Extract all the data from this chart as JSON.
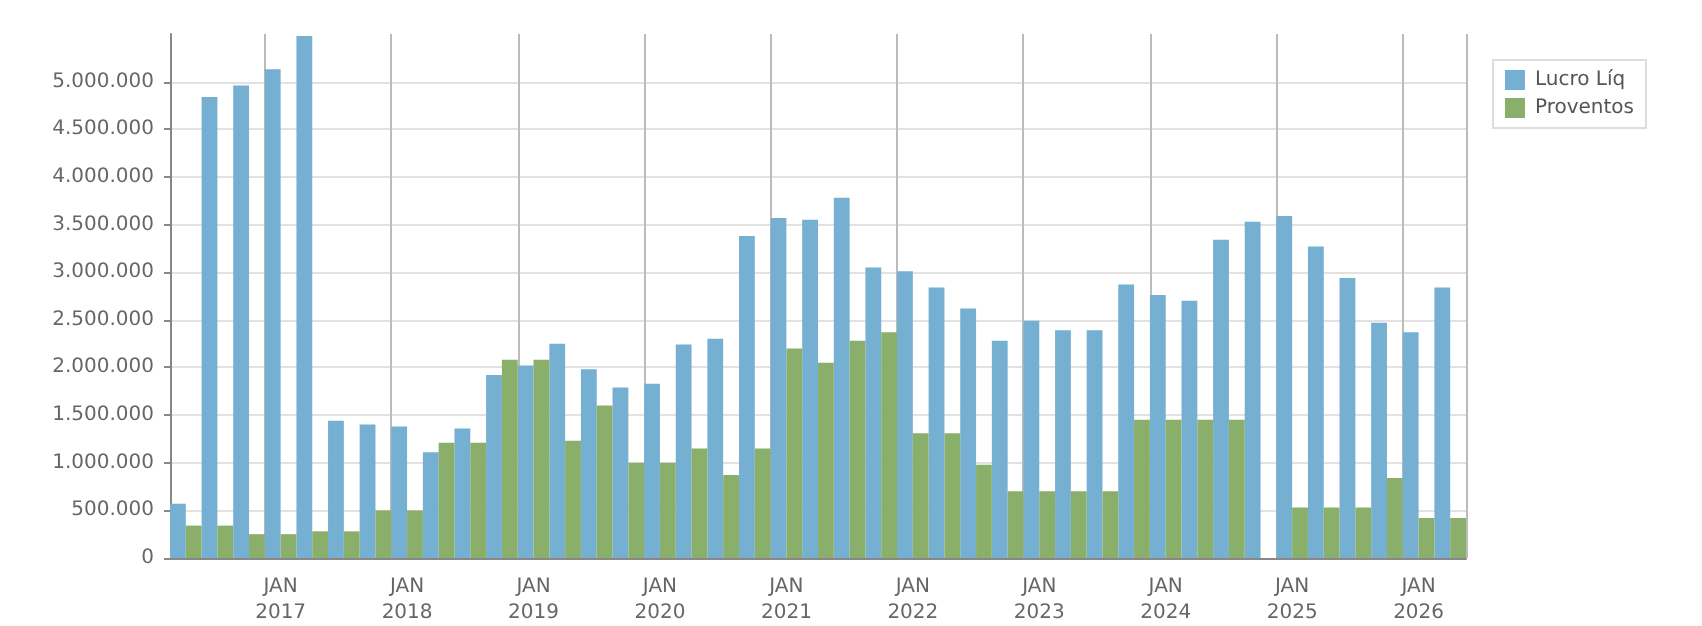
{
  "chart_data": {
    "type": "bar",
    "categories": [
      null,
      null,
      null,
      "JAN\n2017",
      null,
      null,
      null,
      "JAN\n2018",
      null,
      null,
      null,
      "JAN\n2019",
      null,
      null,
      null,
      "JAN\n2020",
      null,
      null,
      null,
      "JAN\n2021",
      null,
      null,
      null,
      "JAN\n2022",
      null,
      null,
      null,
      "JAN\n2023",
      null,
      null,
      null,
      "JAN\n2024",
      null,
      null,
      null,
      "JAN\n2025",
      null,
      null,
      null,
      "JAN\n2026",
      null
    ],
    "series": [
      {
        "name": "Lucro Líq",
        "color": "#75afd1",
        "values": [
          570000,
          4840000,
          4960000,
          5130000,
          5480000,
          1440000,
          1400000,
          1380000,
          1110000,
          1360000,
          1920000,
          2020000,
          2250000,
          1980000,
          1790000,
          1830000,
          2240000,
          2300000,
          3380000,
          3570000,
          3550000,
          3780000,
          3050000,
          3010000,
          2840000,
          2620000,
          2280000,
          2490000,
          2390000,
          2390000,
          2870000,
          2760000,
          2700000,
          3340000,
          3530000,
          3590000,
          3270000,
          2940000,
          2470000,
          2370000,
          2840000
        ]
      },
      {
        "name": "Proventos",
        "color": "#8aaf6a",
        "values": [
          340000,
          340000,
          250000,
          250000,
          280000,
          280000,
          500000,
          500000,
          1210000,
          1210000,
          2080000,
          2080000,
          1230000,
          1600000,
          1000000,
          1000000,
          1150000,
          870000,
          1150000,
          2200000,
          2050000,
          2280000,
          2370000,
          1310000,
          1310000,
          980000,
          700000,
          700000,
          700000,
          700000,
          1450000,
          1450000,
          1450000,
          1450000,
          null,
          530000,
          530000,
          530000,
          840000,
          420000,
          420000
        ]
      }
    ],
    "ylim": [
      0,
      5500000
    ],
    "yticks": [
      0,
      {
        "value": 500000,
        "label": "500.000"
      },
      {
        "value": 1000000,
        "label": "1.000.000"
      },
      {
        "value": 1500000,
        "label": "1.500.000"
      },
      {
        "value": 2000000,
        "label": "2.000.000"
      },
      {
        "value": 2500000,
        "label": "2.500.000"
      },
      {
        "value": 3000000,
        "label": "3.000.000"
      },
      {
        "value": 3500000,
        "label": "3.500.000"
      },
      {
        "value": 4000000,
        "label": "4.000.000"
      },
      {
        "value": 4500000,
        "label": "4.500.000"
      },
      {
        "value": 5000000,
        "label": "5.000.000"
      }
    ],
    "grid": true,
    "legend": "top right"
  }
}
